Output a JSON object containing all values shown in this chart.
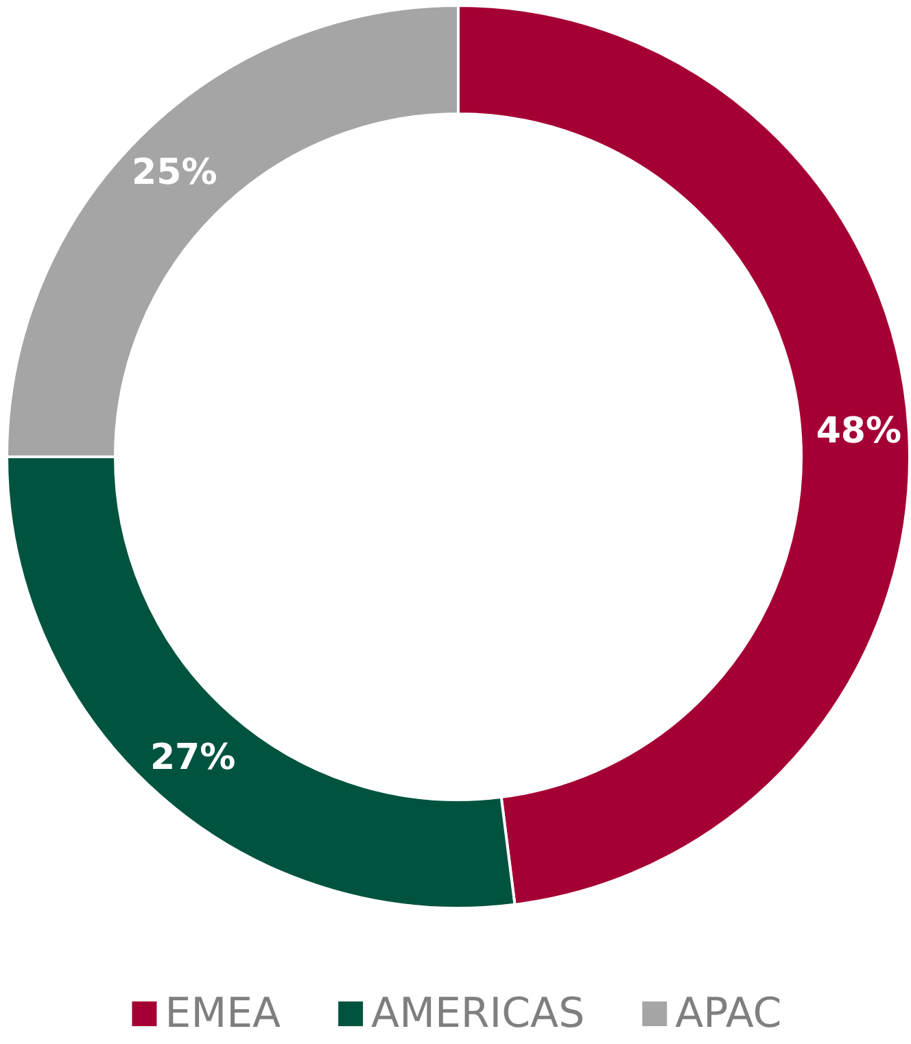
{
  "chart_data": {
    "type": "donut",
    "categories": [
      "EMEA",
      "AMERICAS",
      "APAC"
    ],
    "values": [
      48,
      27,
      25
    ],
    "colors": [
      "#a50034",
      "#00533f",
      "#a5a5a5"
    ],
    "value_labels": [
      "48%",
      "27%",
      "25%"
    ],
    "legend": "bottom"
  }
}
